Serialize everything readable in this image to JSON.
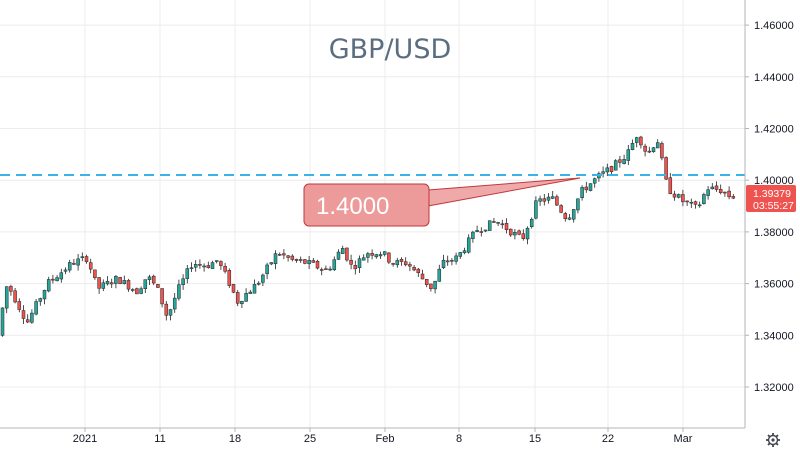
{
  "chart_data": {
    "type": "candlestick",
    "title": "GBP/USD",
    "ylim": [
      1.3,
      1.47
    ],
    "y_ticks": [
      "1.46000",
      "1.44000",
      "1.42000",
      "1.40000",
      "1.38000",
      "1.36000",
      "1.34000",
      "1.32000"
    ],
    "y_tick_values": [
      1.46,
      1.44,
      1.42,
      1.4,
      1.38,
      1.36,
      1.34,
      1.32
    ],
    "x_ticks": [
      "2021",
      "11",
      "18",
      "25",
      "Feb",
      "8",
      "15",
      "22",
      "Mar"
    ],
    "grid": true,
    "horizontal_line": {
      "value": 1.402,
      "color": "#3bb3e4",
      "style": "dashed"
    },
    "annotation": {
      "text": "1.4000"
    },
    "last_price": {
      "value": 1.39379,
      "label": "1.39379",
      "countdown": "03:55:27",
      "color": "#ef5350"
    },
    "up_color": "#26a69a",
    "down_color": "#ef5350",
    "series_anchors": [
      [
        0,
        1.34
      ],
      [
        10,
        1.36
      ],
      [
        30,
        1.345
      ],
      [
        50,
        1.36
      ],
      [
        75,
        1.368
      ],
      [
        90,
        1.37
      ],
      [
        100,
        1.358
      ],
      [
        120,
        1.362
      ],
      [
        140,
        1.357
      ],
      [
        150,
        1.363
      ],
      [
        160,
        1.358
      ],
      [
        170,
        1.347
      ],
      [
        180,
        1.357
      ],
      [
        195,
        1.368
      ],
      [
        210,
        1.367
      ],
      [
        220,
        1.369
      ],
      [
        230,
        1.362
      ],
      [
        240,
        1.353
      ],
      [
        260,
        1.36
      ],
      [
        280,
        1.372
      ],
      [
        295,
        1.369
      ],
      [
        310,
        1.368
      ],
      [
        330,
        1.365
      ],
      [
        345,
        1.374
      ],
      [
        355,
        1.366
      ],
      [
        370,
        1.372
      ],
      [
        385,
        1.372
      ],
      [
        395,
        1.368
      ],
      [
        410,
        1.368
      ],
      [
        425,
        1.362
      ],
      [
        435,
        1.358
      ],
      [
        445,
        1.368
      ],
      [
        460,
        1.37
      ],
      [
        480,
        1.381
      ],
      [
        500,
        1.384
      ],
      [
        525,
        1.377
      ],
      [
        540,
        1.392
      ],
      [
        555,
        1.393
      ],
      [
        570,
        1.385
      ],
      [
        585,
        1.396
      ],
      [
        600,
        1.401
      ],
      [
        615,
        1.405
      ],
      [
        630,
        1.41
      ],
      [
        640,
        1.418
      ],
      [
        650,
        1.41
      ],
      [
        660,
        1.416
      ],
      [
        670,
        1.397
      ],
      [
        685,
        1.392
      ],
      [
        700,
        1.389
      ],
      [
        710,
        1.397
      ],
      [
        725,
        1.396
      ],
      [
        732,
        1.3938
      ]
    ]
  }
}
